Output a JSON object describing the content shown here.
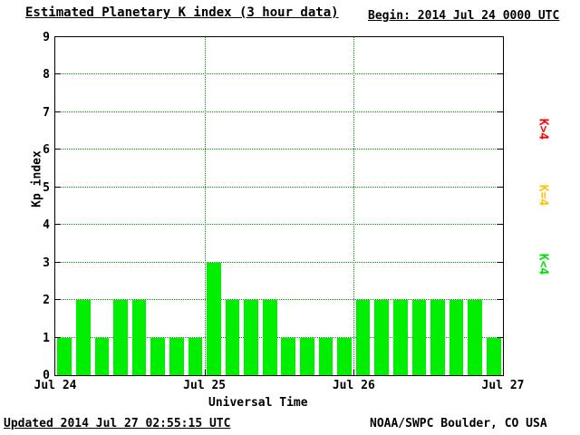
{
  "chart_data": {
    "type": "bar",
    "title": "Estimated Planetary K index (3 hour data)",
    "begin_label": "Begin: 2014 Jul 24 0000 UTC",
    "xlabel": "Universal Time",
    "ylabel": "Kp index",
    "ylim": [
      0,
      9
    ],
    "y_ticks": [
      0,
      1,
      2,
      3,
      4,
      5,
      6,
      7,
      8,
      9
    ],
    "x_tick_labels": [
      "Jul 24",
      "Jul 25",
      "Jul 26",
      "Jul 27"
    ],
    "hours_per_bar": 3,
    "grid": true,
    "bar_color": "#00ee00",
    "grid_color": "#009000",
    "values": [
      1,
      2,
      1,
      2,
      2,
      1,
      1,
      1,
      3,
      2,
      2,
      2,
      1,
      1,
      1,
      1,
      2,
      2,
      2,
      2,
      2,
      2,
      2,
      1
    ],
    "legend_position": "right",
    "legend": [
      {
        "label": "K>4",
        "color": "#ff0000"
      },
      {
        "label": "K=4",
        "color": "#ffc000"
      },
      {
        "label": "K<4",
        "color": "#00dd00"
      }
    ]
  },
  "footer": {
    "updated": "Updated 2014 Jul 27 02:55:15 UTC",
    "source": "NOAA/SWPC Boulder, CO USA"
  }
}
